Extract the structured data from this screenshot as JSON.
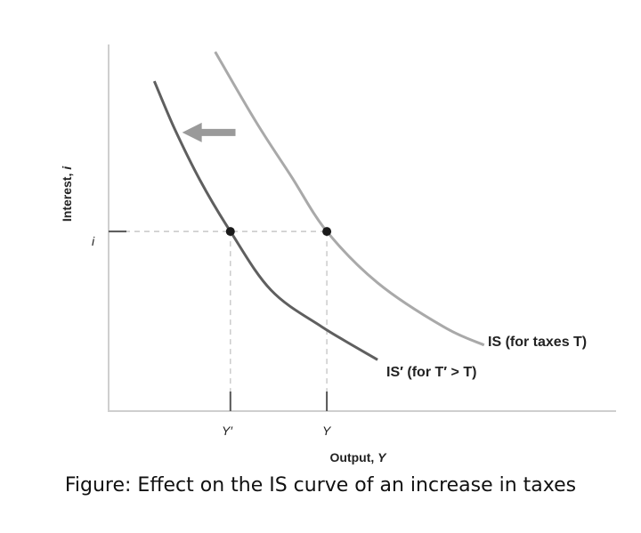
{
  "chart_data": {
    "type": "line",
    "title": "",
    "xlabel": "Output, Y",
    "ylabel": "Interest, i",
    "xlim": [
      0,
      10
    ],
    "ylim": [
      0,
      10
    ],
    "grid": false,
    "x_ticks": [
      {
        "x": 2.4,
        "label": "Y′"
      },
      {
        "x": 4.3,
        "label": "Y"
      }
    ],
    "y_ticks": [
      {
        "y": 4.9,
        "label": "i"
      }
    ],
    "series": [
      {
        "name": "IS (for taxes T)",
        "color": "#a9a9a9",
        "points": [
          [
            2.1,
            9.8
          ],
          [
            2.9,
            7.9
          ],
          [
            3.6,
            6.4
          ],
          [
            4.3,
            4.9
          ],
          [
            5.3,
            3.5
          ],
          [
            6.6,
            2.3
          ],
          [
            7.4,
            1.8
          ]
        ]
      },
      {
        "name": "IS′ (for T′ > T)",
        "color": "#5f5f5f",
        "points": [
          [
            0.9,
            9.0
          ],
          [
            1.3,
            7.7
          ],
          [
            1.8,
            6.3
          ],
          [
            2.4,
            4.9
          ],
          [
            3.2,
            3.3
          ],
          [
            4.2,
            2.3
          ],
          [
            5.3,
            1.4
          ]
        ]
      }
    ],
    "points": [
      {
        "x": 2.4,
        "y": 4.9
      },
      {
        "x": 4.3,
        "y": 4.9
      }
    ],
    "annotations": [
      {
        "type": "arrow",
        "from": [
          2.5,
          7.6
        ],
        "to": [
          1.45,
          7.6
        ]
      }
    ]
  },
  "labels": {
    "y_axis_word": "Interest,",
    "y_axis_var": "i",
    "x_axis_word": "Output,",
    "x_axis_var": "Y",
    "tick_y": "i",
    "tick_yprime": "Y′",
    "tick_yval": "Y",
    "is_label": "IS (for taxes T)",
    "isprime_label": "IS′ (for T′ > T)"
  },
  "caption": "Figure: Effect on the IS curve of an increase in taxes"
}
